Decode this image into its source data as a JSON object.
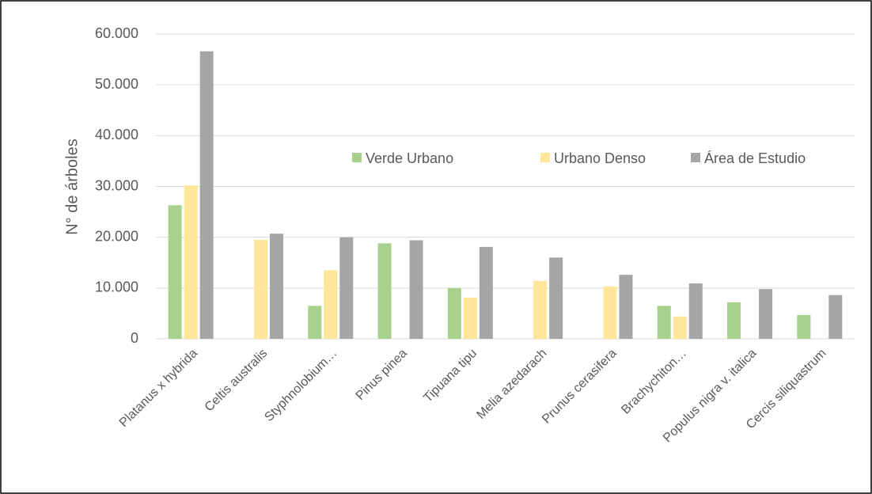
{
  "chart_data": {
    "type": "bar",
    "y_label": "N° de árboles",
    "categories": [
      "Platanus x hybrida",
      "Celtis australis",
      "Styphnolobium…",
      "Pinus pinea",
      "Tipuana tipu",
      "Melia azedarach",
      "Prunus cerasifera",
      "Brachychiton…",
      "Populus nigra v. italica",
      "Cercis siliquastrum"
    ],
    "series": [
      {
        "name": "Verde Urbano",
        "color": "#a9d18e",
        "values": [
          26300,
          null,
          6500,
          18800,
          10000,
          null,
          null,
          6500,
          7200,
          4700
        ]
      },
      {
        "name": "Urbano Denso",
        "color": "#ffe699",
        "values": [
          30200,
          19500,
          13500,
          null,
          8100,
          11400,
          10300,
          4400,
          null,
          null
        ]
      },
      {
        "name": "Área de Estudio",
        "color": "#a5a5a5",
        "values": [
          56600,
          20700,
          20000,
          19400,
          18100,
          16000,
          12600,
          10900,
          9800,
          8600
        ]
      }
    ],
    "ylim": [
      0,
      60000
    ],
    "yticks": [
      0,
      {
        "value": 10000,
        "label": "10.000"
      },
      {
        "value": 20000,
        "label": "20.000"
      },
      {
        "value": 30000,
        "label": "30.000"
      },
      {
        "value": 40000,
        "label": "40.000"
      },
      {
        "value": 50000,
        "label": "50.000"
      },
      {
        "value": 60000,
        "label": "60.000"
      }
    ],
    "grid": true
  }
}
